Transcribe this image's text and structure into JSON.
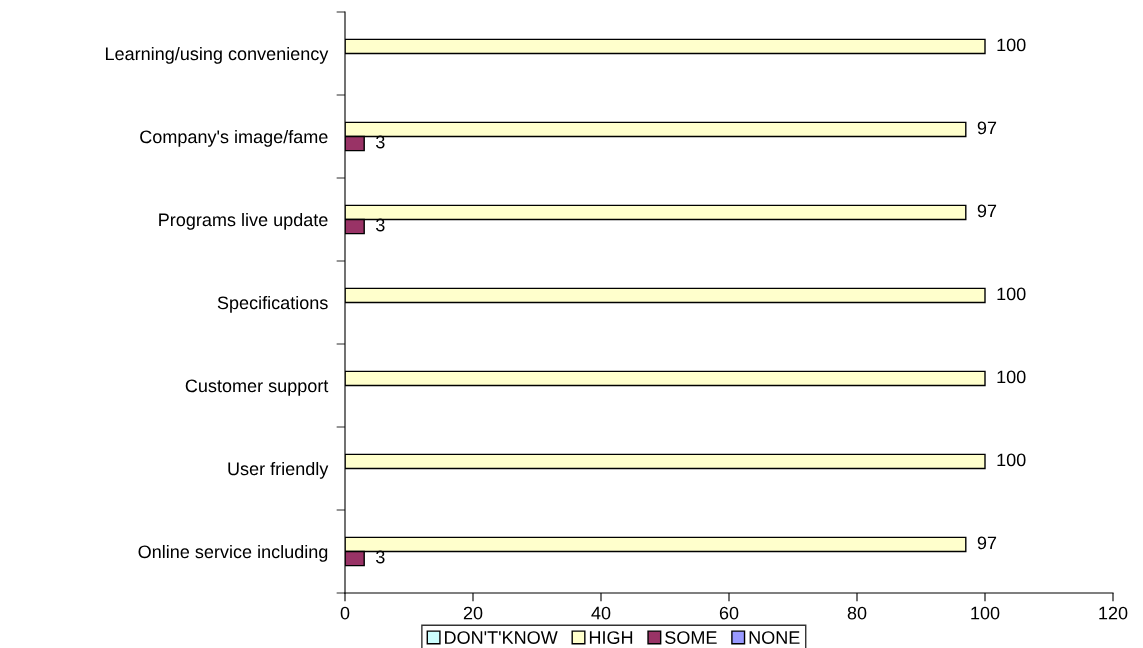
{
  "chart_data": {
    "type": "bar",
    "orientation": "horizontal",
    "categories": [
      "Learning/using conveniency",
      "Company's image/fame",
      "Programs live update",
      "Specifications",
      "Customer support",
      "User friendly",
      "Online service including"
    ],
    "series": [
      {
        "name": "DON'T'KNOW",
        "color": "#ccffff",
        "values": [
          null,
          null,
          null,
          null,
          null,
          null,
          null
        ]
      },
      {
        "name": "HIGH",
        "color": "#ffffcc",
        "values": [
          100,
          97,
          97,
          100,
          100,
          100,
          97
        ]
      },
      {
        "name": "SOME",
        "color": "#993366",
        "values": [
          null,
          3,
          3,
          null,
          null,
          null,
          3
        ]
      },
      {
        "name": "NONE",
        "color": "#9999ff",
        "values": [
          null,
          null,
          null,
          null,
          null,
          null,
          null
        ]
      }
    ],
    "xlim": [
      0,
      120
    ],
    "xticks": [
      0,
      20,
      40,
      60,
      80,
      100,
      120
    ],
    "data_labels": true,
    "grid": false,
    "legend": "bottom"
  }
}
